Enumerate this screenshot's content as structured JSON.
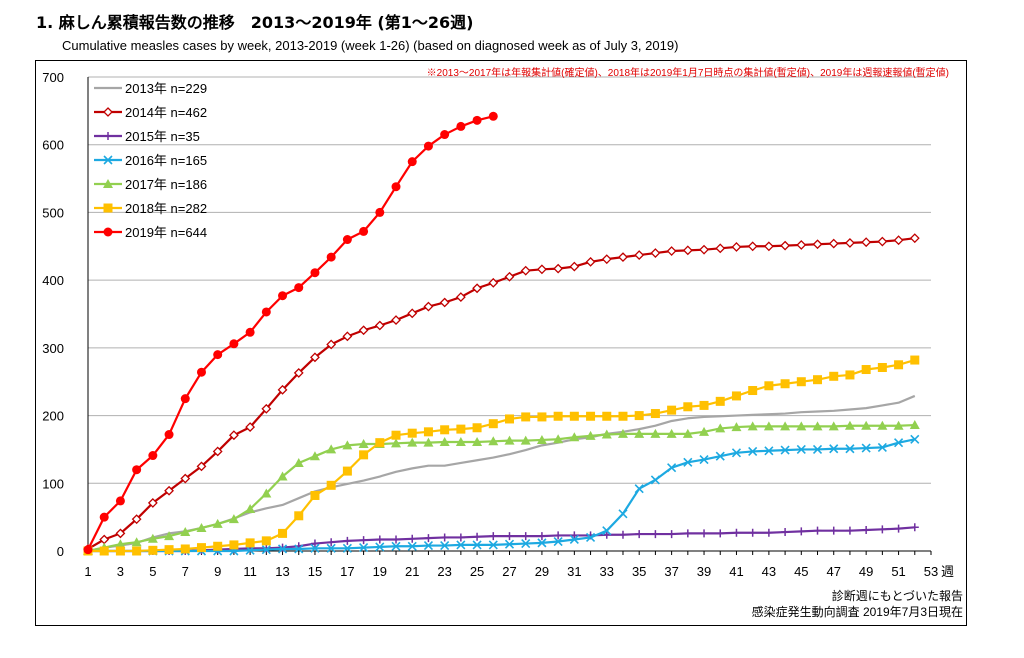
{
  "title": "1. 麻しん累積報告数の推移　2013〜2019年 (第1〜26週)",
  "subtitle": "Cumulative measles cases by week, 2013-2019 (week 1-26)  (based on diagnosed week as of July 3, 2019)",
  "chart_data": {
    "type": "line",
    "title": "1. 麻しん累積報告数の推移　2013〜2019年 (第1〜26週)",
    "subtitle": "Cumulative measles cases by week, 2013-2019 (week 1-26)  (based on diagnosed week as of July 3, 2019)",
    "note": "※2013〜2017年は年報集計値(確定値)、2018年は2019年1月7日時点の集計値(暫定値)、2019年は週報速報値(暫定値)",
    "footer": [
      "診断週にもとづいた報告",
      "感染症発生動向調査 2019年7月3日現在"
    ],
    "xlabel": "週",
    "ylabel": "",
    "xlim": [
      1,
      53
    ],
    "ylim": [
      0,
      700
    ],
    "x_ticks": [
      1,
      3,
      5,
      7,
      9,
      11,
      13,
      15,
      17,
      19,
      21,
      23,
      25,
      27,
      29,
      31,
      33,
      35,
      37,
      39,
      41,
      43,
      45,
      47,
      49,
      51,
      53
    ],
    "y_ticks": [
      0,
      100,
      200,
      300,
      400,
      500,
      600,
      700
    ],
    "grid": "horizontal",
    "legend_position": "top-left",
    "series": [
      {
        "name": "2013年 n=229",
        "color": "#a6a6a6",
        "marker": "none",
        "values": [
          0,
          5,
          8,
          12,
          20,
          26,
          29,
          34,
          40,
          48,
          57,
          63,
          68,
          78,
          88,
          94,
          99,
          104,
          110,
          117,
          122,
          126,
          126,
          130,
          134,
          138,
          143,
          149,
          156,
          160,
          165,
          168,
          173,
          176,
          180,
          185,
          192,
          196,
          198,
          199,
          200,
          201,
          202,
          203,
          205,
          206,
          207,
          209,
          211,
          215,
          219,
          229
        ]
      },
      {
        "name": "2014年 n=462",
        "color": "#c00000",
        "marker": "diamond",
        "values": [
          3,
          17,
          26,
          47,
          71,
          89,
          107,
          125,
          147,
          171,
          183,
          210,
          238,
          263,
          286,
          305,
          317,
          326,
          333,
          341,
          351,
          361,
          367,
          375,
          388,
          396,
          405,
          414,
          416,
          417,
          420,
          427,
          431,
          434,
          437,
          440,
          443,
          444,
          445,
          447,
          449,
          450,
          450,
          451,
          452,
          453,
          454,
          455,
          456,
          457,
          459,
          462
        ]
      },
      {
        "name": "2015年 n=35",
        "color": "#7030a0",
        "marker": "plus",
        "values": [
          0,
          0,
          0,
          0,
          0,
          0,
          0,
          1,
          2,
          3,
          4,
          4,
          5,
          7,
          11,
          13,
          15,
          16,
          17,
          17,
          18,
          19,
          20,
          20,
          21,
          22,
          22,
          22,
          22,
          23,
          23,
          23,
          24,
          24,
          25,
          25,
          25,
          26,
          26,
          26,
          27,
          27,
          27,
          28,
          29,
          30,
          30,
          30,
          31,
          32,
          33,
          35
        ]
      },
      {
        "name": "2016年 n=165",
        "color": "#1da9e1",
        "marker": "x",
        "values": [
          0,
          0,
          0,
          0,
          0,
          0,
          0,
          0,
          0,
          0,
          1,
          2,
          3,
          3,
          4,
          4,
          4,
          5,
          6,
          7,
          7,
          8,
          8,
          9,
          9,
          9,
          10,
          11,
          12,
          14,
          17,
          20,
          30,
          55,
          92,
          105,
          123,
          131,
          135,
          140,
          145,
          147,
          148,
          149,
          150,
          150,
          151,
          151,
          152,
          153,
          160,
          165
        ]
      },
      {
        "name": "2017年 n=186",
        "color": "#92d050",
        "marker": "triangle",
        "values": [
          0,
          5,
          10,
          13,
          18,
          22,
          28,
          34,
          40,
          47,
          62,
          85,
          110,
          130,
          140,
          150,
          156,
          158,
          158,
          159,
          160,
          160,
          161,
          161,
          161,
          162,
          163,
          163,
          164,
          165,
          168,
          170,
          172,
          173,
          173,
          173,
          173,
          173,
          176,
          181,
          183,
          184,
          184,
          184,
          184,
          184,
          184,
          185,
          185,
          185,
          185,
          186
        ]
      },
      {
        "name": "2018年 n=282",
        "color": "#ffc000",
        "marker": "square",
        "values": [
          0,
          0,
          0,
          0,
          1,
          2,
          3,
          5,
          7,
          9,
          12,
          15,
          26,
          52,
          82,
          97,
          118,
          142,
          160,
          171,
          174,
          176,
          179,
          180,
          182,
          188,
          195,
          198,
          198,
          199,
          199,
          199,
          199,
          199,
          200,
          203,
          208,
          213,
          215,
          221,
          229,
          237,
          244,
          247,
          250,
          253,
          258,
          260,
          268,
          271,
          275,
          282
        ]
      },
      {
        "name": "2019年 n=644",
        "color": "#ff0000",
        "marker": "circle",
        "values": [
          2,
          50,
          74,
          120,
          141,
          172,
          225,
          264,
          290,
          306,
          323,
          353,
          377,
          389,
          411,
          434,
          460,
          472,
          500,
          538,
          575,
          598,
          615,
          627,
          636,
          642
        ]
      }
    ]
  }
}
